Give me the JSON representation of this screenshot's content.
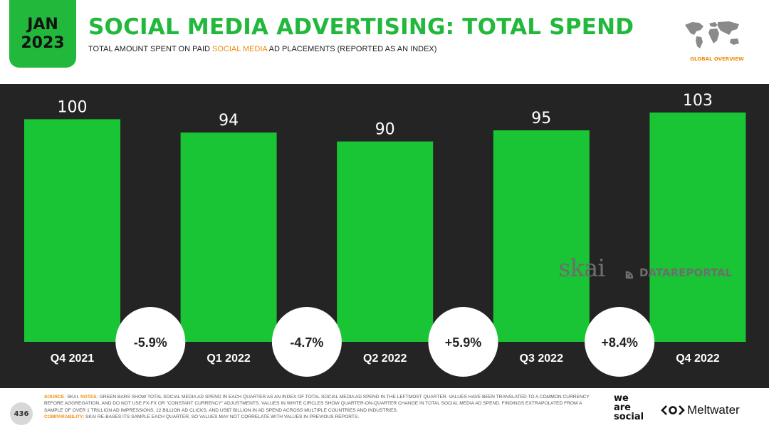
{
  "header": {
    "badge_month": "JAN",
    "badge_year": "2023",
    "title": "SOCIAL MEDIA ADVERTISING: TOTAL SPEND",
    "subtitle_pre": "TOTAL AMOUNT SPENT ON PAID ",
    "subtitle_highlight": "SOCIAL MEDIA",
    "subtitle_post": " AD PLACEMENTS (REPORTED AS AN INDEX)",
    "region_label": "GLOBAL OVERVIEW"
  },
  "chart_data": {
    "type": "bar",
    "categories": [
      "Q4 2021",
      "Q1 2022",
      "Q2 2022",
      "Q3 2022",
      "Q4 2022"
    ],
    "values": [
      100,
      94,
      90,
      95,
      103
    ],
    "changes": [
      "-5.9%",
      "-4.7%",
      "+5.9%",
      "+8.4%"
    ],
    "ylim": [
      0,
      103
    ],
    "bar_color": "#19c535",
    "grid": false
  },
  "watermarks": {
    "skai": "skai",
    "datareportal": "DATAREPORTAL"
  },
  "footer": {
    "page_number": "436",
    "source_label": "SOURCE:",
    "source_text": "SKAI.",
    "notes_label": "NOTES:",
    "notes_text": "GREEN BARS SHOW TOTAL SOCIAL MEDIA AD SPEND IN EACH QUARTER AS AN INDEX OF TOTAL SOCIAL MEDIA AD SPEND IN THE LEFTMOST QUARTER. VALUES HAVE BEEN TRANSLATED TO A COMMON CURRENCY BEFORE AGGREGATION, AND DO NOT USE FX-FX OR \"CONSTANT CURRENCY\" ADJUSTMENTS. VALUES IN WHITE CIRCLES SHOW QUARTER-ON-QUARTER CHANGE IN TOTAL SOCIAL MEDIA AD SPEND. FINDINGS EXTRAPOLATED FROM A SAMPLE OF OVER 1 TRILLION AD IMPRESSIONS, 12 BILLION AD CLICKS, AND US$7 BILLION IN AD SPEND ACROSS MULTIPLE COUNTRIES AND INDUSTRIES.",
    "comparability_label": "COMPARABILITY:",
    "comparability_text": "SKAI RE-BASES ITS SAMPLE EACH QUARTER, SO VALUES MAY NOT CORRELATE WITH VALUES IN PREVIOUS REPORTS.",
    "brand_line1": "we",
    "brand_line2": "are",
    "brand_line3": "social",
    "partner": "Meltwater"
  },
  "colors": {
    "brand_green": "#22b83c",
    "accent_orange": "#f28c0f",
    "background": "#242424"
  }
}
